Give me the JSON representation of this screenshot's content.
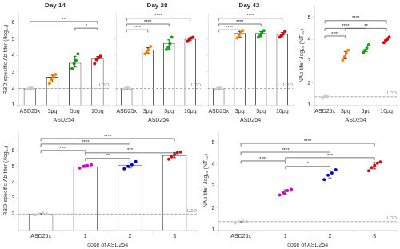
{
  "chart_data": [
    {
      "type": "bar",
      "title": "Day 14",
      "x_label": "ASD254",
      "y_label": "RBD-specific Ab titer (/log₁₀)",
      "categories": [
        "ASD25x",
        "3μg",
        "5μg",
        "10μg"
      ],
      "values": [
        2.0,
        2.7,
        3.55,
        3.8
      ],
      "points": [
        [
          1.95,
          2.0,
          2.05,
          2.0
        ],
        [
          2.3,
          2.55,
          2.7,
          2.85
        ],
        [
          3.2,
          3.5,
          3.7,
          4.1
        ],
        [
          3.5,
          3.75,
          3.85,
          3.95
        ]
      ],
      "colors": [
        "#cccccc",
        "#ff8000",
        "#00aa00",
        "#dd0000"
      ],
      "means": [
        2.0,
        2.6,
        3.625,
        3.7625
      ],
      "std": [
        0.03536,
        0.2031,
        0.32692,
        0.1671
      ],
      "lod": 2.0,
      "lod_label": "LOD",
      "significance": [
        {
          "from": "ASD25x",
          "to": "10μg",
          "y": 6.05,
          "label": "**"
        },
        {
          "from": "5μg",
          "to": "10μg",
          "y": 5.65,
          "label": "*"
        }
      ],
      "ylim": [
        1,
        6.5
      ],
      "yticks": [
        1,
        2,
        3,
        4,
        5,
        6
      ],
      "grid": false
    },
    {
      "type": "bar",
      "title": "Day 28",
      "x_label": "ASD254",
      "categories": [
        "ASD25x",
        "3μg",
        "5μg",
        "10μg"
      ],
      "values": [
        2.0,
        4.35,
        4.75,
        5.0
      ],
      "points": [
        [
          1.95,
          2.0,
          2.05,
          2.0
        ],
        [
          4.1,
          4.2,
          4.35,
          4.55
        ],
        [
          4.35,
          4.5,
          4.7,
          5.1
        ],
        [
          4.85,
          4.95,
          5.05,
          5.1
        ]
      ],
      "colors": [
        "#cccccc",
        "#ff8000",
        "#00aa00",
        "#dd0000"
      ],
      "means": [
        2.0,
        4.3,
        4.6625,
        4.9875
      ],
      "std": [
        0.03536,
        0.16956,
        0.28146,
        0.09601
      ],
      "lod": 2.0,
      "lod_label": "LOD",
      "significance": [
        {
          "from": "ASD25x",
          "to": "3μg",
          "y": 5.55,
          "label": "****"
        },
        {
          "from": "ASD25x",
          "to": "5μg",
          "y": 5.9,
          "label": "****"
        },
        {
          "from": "ASD25x",
          "to": "10μg",
          "y": 6.25,
          "label": "****"
        }
      ],
      "ylim": [
        1,
        6.5
      ],
      "yticks": [
        1,
        2,
        3,
        4,
        5,
        6
      ],
      "grid": false,
      "tick_labels": "x"
    },
    {
      "type": "bar",
      "title": "Day 42",
      "x_label": "ASD254",
      "categories": [
        "ASD25x",
        "3μg",
        "5μg",
        "10μg"
      ],
      "values": [
        2.0,
        5.35,
        5.35,
        5.3
      ],
      "points": [
        [
          1.95,
          2.0,
          2.05,
          2.0
        ],
        [
          5.05,
          5.2,
          5.35,
          5.5
        ],
        [
          5.1,
          5.2,
          5.35,
          5.5
        ],
        [
          5.1,
          5.2,
          5.3,
          5.45
        ]
      ],
      "colors": [
        "#cccccc",
        "#ff8000",
        "#00aa00",
        "#dd0000"
      ],
      "means": [
        2.0,
        5.275,
        5.2875,
        5.2625
      ],
      "std": [
        0.03536,
        0.16771,
        0.15155,
        0.1293
      ],
      "lod": 2.0,
      "lod_label": "LOD",
      "significance": [
        {
          "from": "ASD25x",
          "to": "3μg",
          "y": 5.55,
          "label": "****"
        },
        {
          "from": "ASD25x",
          "to": "5μg",
          "y": 5.9,
          "label": "****"
        },
        {
          "from": "ASD25x",
          "to": "10μg",
          "y": 6.25,
          "label": "****"
        }
      ],
      "ylim": [
        1,
        6.5
      ],
      "yticks": [
        1,
        2,
        3,
        4,
        5,
        6
      ],
      "grid": false,
      "tick_labels": "x"
    },
    {
      "type": "dot",
      "x_label": "ASD254",
      "y_label": "NAb titer /log₁₀ (NT₅₀)",
      "categories": [
        "ASD25x",
        "3μg",
        "5μg",
        "10μg"
      ],
      "points": [
        [
          1.32,
          1.36,
          1.4,
          1.37
        ],
        [
          3.05,
          3.2,
          3.35,
          3.5
        ],
        [
          3.4,
          3.5,
          3.6,
          3.75
        ],
        [
          3.85,
          3.95,
          4.0,
          4.1
        ]
      ],
      "colors": [
        "#cccccc",
        "#ff8000",
        "#00aa00",
        "#dd0000"
      ],
      "means": [
        1.3625,
        3.275,
        3.5625,
        3.975
      ],
      "std": [
        0.02861,
        0.16771,
        0.1293,
        0.09014
      ],
      "lod": 1.38,
      "lod_label": "LOD",
      "significance": [
        {
          "from": "ASD25x",
          "to": "3μg",
          "y": 4.15,
          "label": "****"
        },
        {
          "from": "ASD25x",
          "to": "5μg",
          "y": 4.5,
          "label": "****"
        },
        {
          "from": "ASD25x",
          "to": "10μg",
          "y": 4.85,
          "label": "****"
        },
        {
          "from": "3μg",
          "to": "10μg",
          "y": 4.5,
          "label": "**"
        }
      ],
      "ylim": [
        1,
        5.5
      ],
      "yticks": [
        1,
        2,
        3,
        4,
        5
      ],
      "grid": false
    },
    {
      "type": "bar",
      "x_label": "dose of ASD254",
      "y_label": "RBD-specific Ab titer (/log₁₀)",
      "categories": [
        "ASD25x",
        "1",
        "2",
        "3"
      ],
      "values": [
        2.0,
        5.0,
        5.1,
        5.7
      ],
      "points": [
        [
          1.95,
          2.0,
          2.05,
          2.0
        ],
        [
          4.9,
          5.0,
          5.05,
          5.1
        ],
        [
          4.85,
          5.0,
          5.1,
          5.3
        ],
        [
          5.45,
          5.6,
          5.75,
          5.85,
          5.9
        ]
      ],
      "colors": [
        "#cccccc",
        "#cc00cc",
        "#0000cc",
        "#dd0000"
      ],
      "means": [
        2.0,
        5.0125,
        5.0625,
        5.71
      ],
      "std": [
        0.03536,
        0.07395,
        0.16346,
        0.16553
      ],
      "lod": 2.0,
      "lod_label": "LOD",
      "significance": [
        {
          "from": "ASD25x",
          "to": "1",
          "y": 6.0,
          "label": "****"
        },
        {
          "from": "ASD25x",
          "to": "2",
          "y": 6.4,
          "label": "****"
        },
        {
          "from": "ASD25x",
          "to": "3",
          "y": 6.75,
          "label": "****"
        },
        {
          "from": "1",
          "to": "2",
          "y": 5.5,
          "label": "**"
        },
        {
          "from": "1",
          "to": "3",
          "y": 5.85,
          "label": "***"
        }
      ],
      "ylim": [
        1,
        7.2
      ],
      "yticks": [
        2,
        3,
        4,
        5,
        6
      ],
      "grid": false
    },
    {
      "type": "dot",
      "x_label": "dose of ASD254",
      "y_label": "NAb titer /log₁₀ (NT₅₀)",
      "categories": [
        "ASD25x",
        "1",
        "2",
        "3"
      ],
      "points": [
        [
          1.32,
          1.36,
          1.4,
          1.37
        ],
        [
          2.6,
          2.7,
          2.8,
          2.85
        ],
        [
          3.3,
          3.5,
          3.6,
          3.75
        ],
        [
          3.7,
          3.85,
          3.95,
          4.05,
          4.1
        ]
      ],
      "colors": [
        "#cccccc",
        "#cc00cc",
        "#0000cc",
        "#dd0000"
      ],
      "means": [
        1.3625,
        2.7375,
        3.5375,
        3.93
      ],
      "std": [
        0.02861,
        0.09601,
        0.16346,
        0.14353
      ],
      "lod": 1.38,
      "lod_label": "LOD",
      "significance": [
        {
          "from": "ASD25x",
          "to": "1",
          "y": 4.15,
          "label": "****"
        },
        {
          "from": "ASD25x",
          "to": "2",
          "y": 4.55,
          "label": "****"
        },
        {
          "from": "ASD25x",
          "to": "3",
          "y": 4.95,
          "label": "****"
        },
        {
          "from": "1",
          "to": "2",
          "y": 3.9,
          "label": "*"
        },
        {
          "from": "1",
          "to": "3",
          "y": 4.3,
          "label": "***"
        }
      ],
      "ylim": [
        1,
        5.5
      ],
      "yticks": [
        1,
        2,
        3,
        4,
        5
      ],
      "grid": false
    }
  ]
}
